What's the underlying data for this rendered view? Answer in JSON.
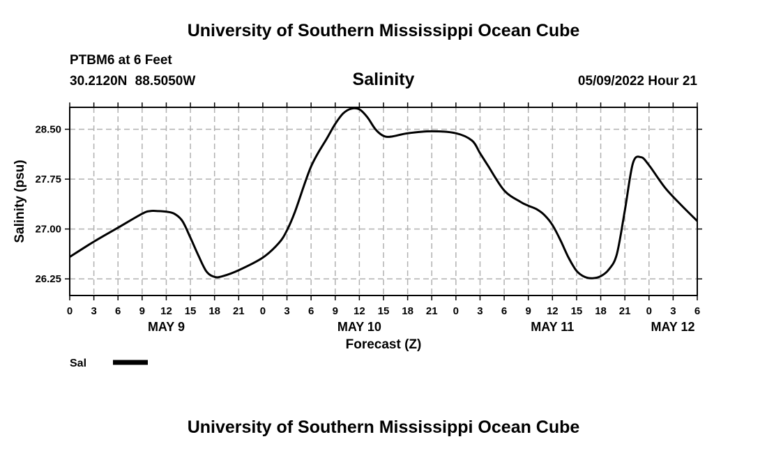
{
  "header": {
    "title": "University of Southern Mississippi Ocean Cube",
    "station": "PTBM6 at 6 Feet",
    "coordinates": "30.2120N  88.5050W",
    "parameter": "Salinity",
    "datetime": "05/09/2022 Hour 21"
  },
  "footer": {
    "title": "University of Southern Mississippi Ocean Cube"
  },
  "colors": {
    "line": "#000000",
    "grid": "#b0b0b0",
    "frame": "#000000"
  },
  "chart_data": {
    "type": "line",
    "title": "Salinity",
    "xlabel": "Forecast (Z)",
    "ylabel": "Salinity (psu)",
    "xlim": [
      0,
      78
    ],
    "ylim": [
      26.0,
      28.83
    ],
    "x_ticks": [
      0,
      3,
      6,
      9,
      12,
      15,
      18,
      21,
      24,
      27,
      30,
      33,
      36,
      39,
      42,
      45,
      48,
      51,
      54,
      57,
      60,
      63,
      66,
      69,
      72,
      75,
      78
    ],
    "x_tick_labels": [
      "0",
      "3",
      "6",
      "9",
      "12",
      "15",
      "18",
      "21",
      "0",
      "3",
      "6",
      "9",
      "12",
      "15",
      "18",
      "21",
      "0",
      "3",
      "6",
      "9",
      "12",
      "15",
      "18",
      "21",
      "0",
      "3",
      "6"
    ],
    "y_ticks": [
      26.25,
      27.0,
      27.75,
      28.5
    ],
    "y_tick_labels": [
      "26.25",
      "27.00",
      "27.75",
      "28.50"
    ],
    "date_labels": [
      {
        "x": 12,
        "label": "MAY 9"
      },
      {
        "x": 36,
        "label": "MAY 10"
      },
      {
        "x": 60,
        "label": "MAY 11"
      },
      {
        "x": 78,
        "label": "MAY 12"
      }
    ],
    "grid": true,
    "series": [
      {
        "name": "Sal",
        "x": [
          0,
          3,
          6,
          9,
          10,
          11,
          12,
          13,
          14,
          15,
          16,
          17,
          18,
          19,
          21,
          24,
          26,
          27,
          28,
          30,
          32,
          33,
          34,
          35,
          36,
          37,
          38,
          39,
          40,
          42,
          45,
          48,
          50,
          51,
          52,
          54,
          56,
          57,
          58,
          59,
          60,
          61,
          62,
          63,
          64,
          65,
          66,
          67,
          68,
          69,
          70,
          71,
          72,
          74,
          76,
          78
        ],
        "y": [
          26.58,
          26.81,
          27.02,
          27.23,
          27.27,
          27.27,
          27.26,
          27.23,
          27.12,
          26.87,
          26.6,
          26.36,
          26.28,
          26.29,
          26.38,
          26.57,
          26.79,
          26.98,
          27.26,
          27.94,
          28.37,
          28.58,
          28.74,
          28.81,
          28.8,
          28.68,
          28.5,
          28.4,
          28.39,
          28.44,
          28.47,
          28.44,
          28.33,
          28.14,
          27.95,
          27.58,
          27.41,
          27.35,
          27.3,
          27.21,
          27.06,
          26.83,
          26.57,
          26.37,
          26.28,
          26.26,
          26.29,
          26.39,
          26.62,
          27.28,
          27.99,
          28.08,
          27.96,
          27.62,
          27.36,
          27.12
        ]
      }
    ],
    "legend": [
      {
        "label": "Sal"
      }
    ],
    "legend_position": "bottom-left"
  }
}
